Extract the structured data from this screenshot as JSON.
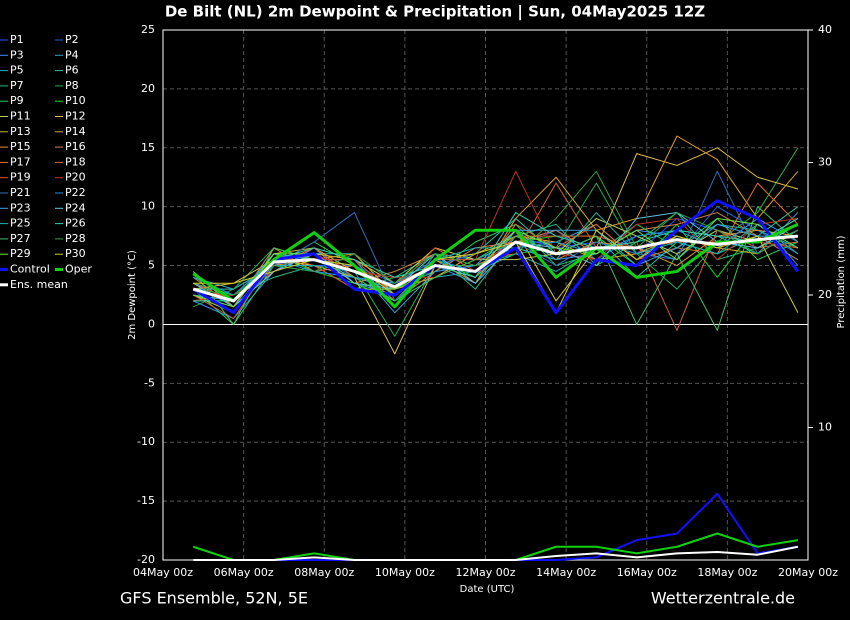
{
  "chart_data": {
    "type": "line",
    "title": "De Bilt  (NL)  2m Dewpoint & Precipitation | Sun, 04May2025 12Z",
    "xlabel": "Date (UTC)",
    "ylabel": "2m Dewpoint (°C)",
    "y2label": "Precipitation (mm)",
    "footer_left": "GFS Ensemble, 52N, 5E",
    "footer_right": "Wetterzentrale.de",
    "x": [
      18,
      42,
      66,
      90,
      114,
      138,
      162,
      186,
      210,
      234,
      258,
      282,
      306,
      330,
      354,
      378
    ],
    "xlim": [
      0,
      384
    ],
    "xticks": [
      {
        "value": 0,
        "label": "04May 00z"
      },
      {
        "value": 48,
        "label": "06May 00z"
      },
      {
        "value": 96,
        "label": "08May 00z"
      },
      {
        "value": 144,
        "label": "10May 00z"
      },
      {
        "value": 192,
        "label": "12May 00z"
      },
      {
        "value": 240,
        "label": "14May 00z"
      },
      {
        "value": 288,
        "label": "16May 00z"
      },
      {
        "value": 336,
        "label": "18May 00z"
      },
      {
        "value": 384,
        "label": "20May 00z"
      }
    ],
    "ylim": [
      -20,
      25
    ],
    "yticks": [
      -20,
      -15,
      -10,
      -5,
      0,
      5,
      10,
      15,
      20,
      25
    ],
    "y2lim": [
      0,
      40
    ],
    "y2ticks": [
      10,
      20,
      30,
      40
    ],
    "grid": true,
    "series": [
      {
        "name": "P1",
        "color": "#3050ff",
        "width": 1,
        "values": [
          2.5,
          1.5,
          5.0,
          6.0,
          4.0,
          2.0,
          5.5,
          4.0,
          7.5,
          6.5,
          7.0,
          6.0,
          9.0,
          8.0,
          7.0,
          8.5
        ]
      },
      {
        "name": "P2",
        "color": "#2060e0",
        "width": 1,
        "values": [
          3.5,
          2.5,
          5.5,
          5.0,
          5.0,
          3.5,
          4.5,
          5.0,
          6.5,
          8.0,
          5.5,
          7.5,
          6.0,
          10.0,
          8.0,
          6.0
        ]
      },
      {
        "name": "P3",
        "color": "#4090ff",
        "width": 1,
        "values": [
          2.0,
          0.5,
          4.5,
          6.5,
          3.5,
          2.5,
          5.0,
          3.5,
          8.0,
          5.5,
          6.0,
          8.0,
          7.5,
          6.5,
          9.0,
          7.0
        ]
      },
      {
        "name": "P4",
        "color": "#30a0d0",
        "width": 1,
        "values": [
          3.0,
          2.0,
          6.0,
          5.5,
          5.5,
          1.5,
          6.0,
          5.5,
          7.0,
          7.0,
          8.5,
          5.5,
          8.0,
          7.5,
          6.0,
          9.5
        ]
      },
      {
        "name": "P5",
        "color": "#20b0c0",
        "width": 1,
        "values": [
          4.0,
          3.0,
          5.0,
          4.5,
          4.0,
          3.0,
          4.0,
          4.5,
          6.0,
          4.5,
          6.5,
          6.5,
          5.5,
          8.5,
          8.0,
          6.5
        ]
      },
      {
        "name": "P6",
        "color": "#20c0a0",
        "width": 1,
        "values": [
          2.5,
          1.0,
          5.5,
          6.0,
          6.0,
          2.5,
          5.5,
          6.0,
          9.0,
          6.0,
          7.5,
          4.0,
          7.0,
          6.0,
          7.5,
          10.0
        ]
      },
      {
        "name": "P7",
        "color": "#20c080",
        "width": 1,
        "values": [
          3.5,
          2.5,
          4.0,
          5.0,
          3.0,
          4.0,
          6.0,
          3.0,
          7.5,
          8.5,
          5.0,
          7.0,
          9.5,
          5.5,
          6.5,
          8.0
        ]
      },
      {
        "name": "P8",
        "color": "#20b050",
        "width": 1,
        "values": [
          1.5,
          3.0,
          6.5,
          5.5,
          4.5,
          -1.0,
          5.0,
          5.0,
          6.0,
          6.5,
          12.0,
          6.0,
          3.0,
          7.0,
          9.5,
          15.0
        ]
      },
      {
        "name": "P9",
        "color": "#20d060",
        "width": 1,
        "values": [
          3.0,
          0.0,
          5.0,
          7.0,
          5.0,
          3.0,
          4.5,
          7.0,
          8.5,
          5.0,
          6.0,
          8.5,
          6.5,
          9.0,
          5.5,
          7.0
        ]
      },
      {
        "name": "P10",
        "color": "#10e020",
        "width": 1,
        "values": [
          2.0,
          2.0,
          6.0,
          4.5,
          3.5,
          2.0,
          5.5,
          4.0,
          7.0,
          7.5,
          7.5,
          5.0,
          8.5,
          4.0,
          8.5,
          6.0
        ]
      },
      {
        "name": "P11",
        "color": "#c0d050",
        "width": 1,
        "values": [
          4.5,
          1.5,
          4.5,
          6.0,
          5.5,
          3.5,
          6.5,
          5.5,
          5.5,
          6.0,
          9.0,
          7.5,
          6.0,
          8.0,
          7.0,
          9.0
        ]
      },
      {
        "name": "P12",
        "color": "#e0c040",
        "width": 1,
        "values": [
          3.0,
          3.5,
          5.5,
          5.0,
          4.0,
          -2.5,
          5.0,
          4.5,
          8.0,
          2.0,
          6.5,
          14.5,
          13.5,
          15.0,
          12.5,
          11.5
        ]
      },
      {
        "name": "P13",
        "color": "#d0b020",
        "width": 1,
        "values": [
          2.5,
          1.0,
          6.0,
          6.5,
          4.5,
          3.0,
          4.0,
          6.0,
          7.5,
          7.0,
          5.5,
          6.0,
          7.5,
          6.5,
          6.0,
          8.0
        ]
      },
      {
        "name": "P14",
        "color": "#e0a020",
        "width": 1,
        "values": [
          3.5,
          2.0,
          5.0,
          5.5,
          6.0,
          2.5,
          5.5,
          3.5,
          9.0,
          12.5,
          8.0,
          9.0,
          16.0,
          14.0,
          9.0,
          13.0
        ]
      },
      {
        "name": "P15",
        "color": "#e09040",
        "width": 1,
        "values": [
          2.0,
          2.5,
          4.5,
          6.0,
          3.5,
          4.5,
          6.0,
          5.0,
          6.5,
          5.5,
          7.0,
          6.5,
          5.0,
          7.5,
          8.0,
          7.5
        ]
      },
      {
        "name": "P16",
        "color": "#d08050",
        "width": 1,
        "values": [
          4.0,
          1.5,
          6.5,
          4.5,
          5.0,
          2.0,
          4.5,
          6.5,
          7.0,
          8.0,
          6.0,
          8.0,
          8.5,
          9.5,
          7.5,
          5.5
        ]
      },
      {
        "name": "P17",
        "color": "#e07030",
        "width": 1,
        "values": [
          3.0,
          3.0,
          5.0,
          6.5,
          4.0,
          3.5,
          5.0,
          4.0,
          8.5,
          6.5,
          8.5,
          5.5,
          6.5,
          6.0,
          12.0,
          8.5
        ]
      },
      {
        "name": "P18",
        "color": "#d06040",
        "width": 1,
        "values": [
          2.5,
          0.5,
          5.5,
          5.5,
          5.5,
          2.5,
          5.5,
          5.5,
          6.0,
          12.0,
          6.5,
          7.0,
          -0.5,
          8.0,
          6.5,
          7.0
        ]
      },
      {
        "name": "P19",
        "color": "#e05020",
        "width": 1,
        "values": [
          3.5,
          2.0,
          6.0,
          5.0,
          3.0,
          3.0,
          6.5,
          4.5,
          7.5,
          7.5,
          7.5,
          6.5,
          7.0,
          7.0,
          7.0,
          6.5
        ]
      },
      {
        "name": "P20",
        "color": "#c03020",
        "width": 1,
        "values": [
          2.0,
          2.5,
          4.5,
          6.0,
          4.5,
          4.0,
          4.0,
          5.5,
          13.0,
          6.0,
          5.5,
          8.5,
          9.0,
          5.5,
          8.5,
          9.0
        ]
      },
      {
        "name": "P21",
        "color": "#3070c0",
        "width": 1,
        "values": [
          3.0,
          1.0,
          5.0,
          7.0,
          9.5,
          2.0,
          5.0,
          6.0,
          7.0,
          5.0,
          7.0,
          6.0,
          5.5,
          13.0,
          6.0,
          8.0
        ]
      },
      {
        "name": "P22",
        "color": "#2090e0",
        "width": 1,
        "values": [
          4.0,
          2.5,
          5.5,
          4.5,
          4.0,
          3.5,
          5.5,
          4.5,
          6.5,
          7.0,
          6.0,
          7.5,
          8.0,
          6.5,
          9.0,
          5.0
        ]
      },
      {
        "name": "P23",
        "color": "#40a0e0",
        "width": 1,
        "values": [
          2.5,
          2.0,
          6.0,
          5.5,
          5.0,
          1.0,
          4.5,
          5.0,
          8.0,
          8.0,
          8.0,
          5.0,
          6.5,
          8.5,
          7.5,
          7.5
        ]
      },
      {
        "name": "P24",
        "color": "#60c0e0",
        "width": 1,
        "values": [
          3.5,
          1.5,
          4.5,
          6.0,
          3.5,
          3.0,
          6.0,
          3.5,
          7.0,
          6.5,
          5.0,
          9.0,
          9.5,
          7.0,
          6.5,
          8.5
        ]
      },
      {
        "name": "P25",
        "color": "#20b0b0",
        "width": 1,
        "values": [
          3.0,
          3.0,
          5.0,
          5.0,
          4.5,
          2.5,
          5.5,
          6.5,
          6.5,
          5.5,
          9.5,
          6.0,
          7.0,
          6.0,
          8.5,
          6.0
        ]
      },
      {
        "name": "P26",
        "color": "#30d0b0",
        "width": 1,
        "values": [
          2.0,
          2.0,
          5.5,
          6.5,
          5.5,
          4.0,
          5.0,
          4.0,
          9.5,
          7.5,
          6.5,
          7.0,
          8.0,
          7.5,
          7.0,
          9.0
        ]
      },
      {
        "name": "P27",
        "color": "#40c060",
        "width": 1,
        "values": [
          4.5,
          0.0,
          6.5,
          5.5,
          4.0,
          2.0,
          4.0,
          5.5,
          7.5,
          6.0,
          7.5,
          0.0,
          6.0,
          -0.5,
          10.0,
          7.0
        ]
      },
      {
        "name": "P28",
        "color": "#30a040",
        "width": 1,
        "values": [
          3.0,
          2.5,
          5.0,
          4.5,
          6.0,
          3.5,
          6.0,
          5.0,
          6.0,
          9.0,
          13.0,
          6.5,
          9.5,
          8.0,
          6.0,
          8.0
        ]
      },
      {
        "name": "P29",
        "color": "#70e040",
        "width": 1,
        "values": [
          2.5,
          1.5,
          6.0,
          6.0,
          3.0,
          3.0,
          5.0,
          4.5,
          8.0,
          6.5,
          6.0,
          8.0,
          5.5,
          9.0,
          8.5,
          6.5
        ]
      },
      {
        "name": "P30",
        "color": "#d0d020",
        "width": 1,
        "values": [
          3.5,
          3.5,
          4.5,
          5.5,
          5.0,
          2.5,
          5.5,
          6.0,
          7.0,
          1.0,
          8.0,
          5.5,
          7.5,
          6.5,
          7.5,
          1.0
        ]
      },
      {
        "name": "Control",
        "color": "#1010ff",
        "width": 3,
        "values": [
          3.0,
          1.0,
          5.5,
          6.0,
          3.0,
          2.5,
          5.0,
          4.5,
          6.5,
          1.0,
          5.5,
          5.0,
          8.0,
          10.5,
          9.0,
          4.5
        ]
      },
      {
        "name": "Oper",
        "color": "#10d010",
        "width": 3,
        "values": [
          4.3,
          2.0,
          5.5,
          7.8,
          5.0,
          1.5,
          5.5,
          8.0,
          8.0,
          4.0,
          6.5,
          4.0,
          4.5,
          7.0,
          7.0,
          8.5
        ]
      },
      {
        "name": "Ens. mean",
        "color": "#ffffff",
        "width": 3,
        "values": [
          3.0,
          2.0,
          5.3,
          5.5,
          4.5,
          3.2,
          5.0,
          4.5,
          7.0,
          6.0,
          6.5,
          6.5,
          7.2,
          6.8,
          7.2,
          7.5
        ]
      }
    ],
    "precipitation": [
      {
        "color": "#1010ff",
        "axis": "y2",
        "values": [
          0,
          0,
          0,
          0,
          0,
          0,
          0,
          0,
          0,
          0,
          0.2,
          1.5,
          2.0,
          5.0,
          0.5,
          1.0
        ]
      },
      {
        "color": "#10d010",
        "axis": "y2",
        "values": [
          1.0,
          0,
          0,
          0.5,
          0,
          0,
          0,
          0,
          0,
          1.0,
          1.0,
          0.5,
          1.0,
          2.0,
          1.0,
          1.5
        ]
      },
      {
        "color": "#ffffff",
        "axis": "y2",
        "values": [
          0,
          0,
          0,
          0.2,
          0,
          0,
          0,
          0,
          0,
          0.3,
          0.5,
          0.2,
          0.5,
          0.6,
          0.4,
          1.0
        ]
      }
    ]
  }
}
